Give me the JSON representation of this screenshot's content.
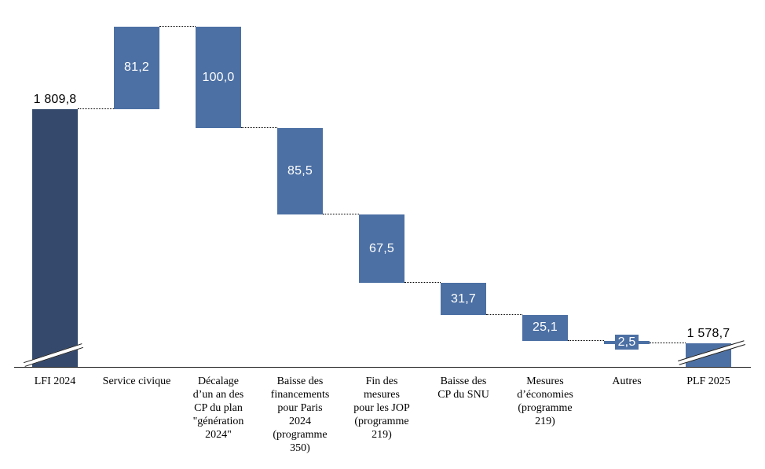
{
  "chart_data": {
    "type": "bar",
    "subtype": "waterfall",
    "title": "",
    "legend": "none",
    "grid": false,
    "y_axis": {
      "visible": false,
      "broken": true
    },
    "value_range_shown": [
      1578.7,
      1891.0
    ],
    "colors": {
      "total_start": "#34496c",
      "delta": "#4c70a4",
      "total_end": "#4c70a4",
      "label_on_bar": "#ffffff",
      "label_outside": "#000000",
      "connector": "#000000",
      "axis": "#1a1a1a"
    },
    "items": [
      {
        "label": "LFI 2024",
        "role": "total_start",
        "value": 1809.8,
        "value_label": "1 809,8",
        "axis_break": true
      },
      {
        "label": "Service civique",
        "role": "increase",
        "delta": 81.2,
        "value_label": "81,2"
      },
      {
        "label": "Décalage\nd’un an des\nCP du plan\n\"génération\n2024\"",
        "role": "decrease",
        "delta": -100.0,
        "value_label": "100,0"
      },
      {
        "label": "Baisse des\nfinancements\npour Paris\n2024\n(programme\n350)",
        "role": "decrease",
        "delta": -85.5,
        "value_label": "85,5"
      },
      {
        "label": "Fin des\nmesures\npour les JOP\n(programme\n219)",
        "role": "decrease",
        "delta": -67.5,
        "value_label": "67,5"
      },
      {
        "label": "Baisse des\nCP du SNU",
        "role": "decrease",
        "delta": -31.7,
        "value_label": "31,7"
      },
      {
        "label": "Mesures\nd’économies\n(programme\n219)",
        "role": "decrease",
        "delta": -25.1,
        "value_label": "25,1"
      },
      {
        "label": "Autres",
        "role": "decrease",
        "delta": -2.5,
        "value_label": "2,5"
      },
      {
        "label": "PLF 2025",
        "role": "total_end",
        "value": 1578.7,
        "value_label": "1 578,7",
        "axis_break": true
      }
    ]
  }
}
